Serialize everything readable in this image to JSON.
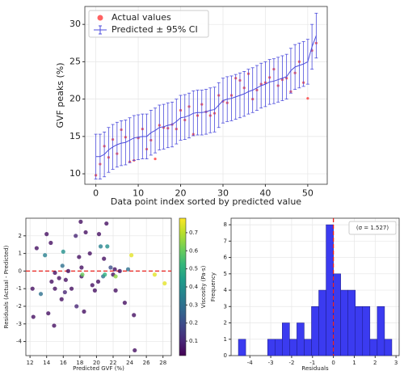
{
  "chart_data": [
    {
      "type": "errorbar_line",
      "xlabel": "Data point index sorted by predicted value",
      "ylabel": "GVF peaks (%)",
      "x": [
        0,
        1,
        2,
        3,
        4,
        5,
        6,
        7,
        8,
        9,
        10,
        11,
        12,
        13,
        14,
        15,
        16,
        17,
        18,
        19,
        20,
        21,
        22,
        23,
        24,
        25,
        26,
        27,
        28,
        29,
        30,
        31,
        32,
        33,
        34,
        35,
        36,
        37,
        38,
        39,
        40,
        41,
        42,
        43,
        44,
        45,
        46,
        47,
        48,
        49,
        50,
        51,
        52
      ],
      "series": [
        {
          "name": "Actual values",
          "color": "#ff3b3b",
          "style": "scatter",
          "values": [
            9.8,
            11.3,
            13.7,
            12.2,
            14.6,
            12.7,
            15.9,
            14.9,
            11.6,
            11.8,
            14.8,
            16.0,
            13.3,
            14.5,
            12.0,
            16.5,
            16.2,
            16.1,
            16.6,
            16.0,
            18.5,
            17.2,
            19.0,
            15.3,
            17.8,
            19.3,
            18.3,
            17.8,
            18.1,
            20.5,
            19.7,
            19.5,
            20.5,
            22.8,
            22.5,
            21.5,
            23.4,
            20.0,
            21.2,
            22.0,
            22.2,
            22.9,
            24.0,
            21.8,
            22.6,
            22.8,
            21.0,
            23.5,
            25.0,
            22.2,
            20.1,
            26.5,
            27.5
          ]
        },
        {
          "name": "Predicted ± 95% CI",
          "color": "#4c4cdc",
          "style": "errorbar",
          "values": [
            12.3,
            12.3,
            12.6,
            13.2,
            13.6,
            13.9,
            14.1,
            14.2,
            14.5,
            14.8,
            14.9,
            15.0,
            15.0,
            15.5,
            15.8,
            16.2,
            16.3,
            16.5,
            16.6,
            17.0,
            17.5,
            17.6,
            17.8,
            18.1,
            18.2,
            18.2,
            18.3,
            18.5,
            18.6,
            19.2,
            19.8,
            20.0,
            20.1,
            20.3,
            20.5,
            20.7,
            21.0,
            21.2,
            21.5,
            21.8,
            22.0,
            22.3,
            22.4,
            22.6,
            22.8,
            23.0,
            23.8,
            24.3,
            24.5,
            24.7,
            25.0,
            27.0,
            28.5
          ],
          "errors": [
            3,
            3,
            3,
            3,
            3,
            3,
            3,
            3,
            3,
            3,
            3,
            3,
            3,
            3,
            3,
            3,
            3,
            3,
            3,
            3,
            3,
            3,
            3,
            3,
            3,
            3,
            3,
            3,
            3,
            3,
            3,
            3,
            3,
            3,
            3,
            3,
            3,
            3,
            3,
            3,
            3,
            3,
            3,
            3,
            3,
            3,
            3,
            3,
            3,
            3,
            3,
            3,
            3
          ]
        }
      ],
      "xlim": [
        -2.6,
        54.6
      ],
      "xticks": [
        0,
        10,
        20,
        30,
        40,
        50
      ],
      "ylim": [
        8.6,
        32.4
      ],
      "yticks": [
        10,
        15,
        20,
        25,
        30
      ],
      "grid": true,
      "legend": "upper left"
    },
    {
      "type": "scatter",
      "xlabel": "Predicted GVF (%)",
      "ylabel": "Residuals (Actual - Predicted)",
      "colorbar_label": "Viscosity (Pa·s)",
      "colormap": "viridis",
      "x": [
        12.3,
        12.4,
        12.8,
        13.3,
        13.8,
        14.0,
        14.2,
        14.5,
        14.6,
        14.9,
        15.0,
        15.0,
        15.5,
        15.8,
        15.9,
        16.0,
        16.2,
        16.3,
        16.6,
        17.0,
        17.5,
        17.6,
        17.9,
        18.1,
        18.2,
        18.2,
        18.3,
        18.5,
        18.7,
        19.2,
        19.5,
        19.8,
        20.2,
        20.3,
        20.5,
        20.8,
        20.9,
        21.0,
        21.2,
        21.3,
        21.7,
        22.0,
        22.2,
        22.3,
        22.3,
        22.8,
        23.4,
        23.8,
        24.2,
        24.5,
        24.6,
        27.0,
        28.2
      ],
      "values": [
        -1.0,
        -2.6,
        1.3,
        -1.3,
        0.9,
        2.1,
        -2.4,
        1.6,
        -0.6,
        -3.1,
        -1.0,
        -0.1,
        -0.4,
        -1.6,
        0.3,
        1.1,
        -1.2,
        -0.5,
        0.0,
        -1.0,
        2.0,
        -2.0,
        0.8,
        2.8,
        -0.3,
        0.2,
        -0.2,
        -2.3,
        2.2,
        1.0,
        -0.8,
        -1.1,
        -0.6,
        2.1,
        1.4,
        -0.3,
        0.7,
        -0.2,
        2.7,
        1.4,
        0.2,
        -0.2,
        0.1,
        -1.1,
        -0.3,
        0.0,
        -1.8,
        0.1,
        0.9,
        -2.5,
        -4.5,
        -0.2,
        -0.7
      ],
      "color_values": [
        0.05,
        0.05,
        0.05,
        0.3,
        0.35,
        0.05,
        0.05,
        0.05,
        0.05,
        0.05,
        0.05,
        0.05,
        0.05,
        0.05,
        0.3,
        0.4,
        0.1,
        0.05,
        0.05,
        0.05,
        0.1,
        0.1,
        0.05,
        0.05,
        0.05,
        0.05,
        0.6,
        0.05,
        0.05,
        0.05,
        0.05,
        0.05,
        0.05,
        0.05,
        0.35,
        0.3,
        0.05,
        0.5,
        0.05,
        0.4,
        0.2,
        0.05,
        0.05,
        0.05,
        0.65,
        0.05,
        0.05,
        0.3,
        0.75,
        0.05,
        0.05,
        0.75,
        0.75
      ],
      "hline": 0,
      "line_color": "#e8201c",
      "xlim": [
        11.5,
        29
      ],
      "xticks": [
        12,
        14,
        16,
        18,
        20,
        22,
        24,
        26,
        28
      ],
      "ylim": [
        -4.8,
        3.0
      ],
      "yticks": [
        -4,
        -3,
        -2,
        -1,
        0,
        1,
        2
      ],
      "clim": [
        0.02,
        0.78
      ],
      "cticks": [
        0.1,
        0.2,
        0.3,
        0.4,
        0.5,
        0.6,
        0.7
      ],
      "grid": true
    },
    {
      "type": "histogram",
      "xlabel": "Residuals",
      "ylabel": "Frequency",
      "annotation": "(σ = 1.527)",
      "color": "#3b3bf0",
      "bins": [
        -4.55,
        -4.2,
        -3.85,
        -3.5,
        -3.15,
        -2.8,
        -2.45,
        -2.1,
        -1.75,
        -1.4,
        -1.05,
        -0.7,
        -0.35,
        0,
        0.35,
        0.7,
        1.05,
        1.4,
        1.75,
        2.1,
        2.45,
        2.8
      ],
      "counts": [
        1,
        0,
        0,
        0,
        1,
        1,
        2,
        1,
        2,
        1,
        3,
        4,
        8,
        5,
        4,
        4,
        3,
        3,
        1,
        3,
        1
      ],
      "vline": 0,
      "line_color": "#e8201c",
      "xlim": [
        -4.9,
        3.15
      ],
      "xticks": [
        -4,
        -3,
        -2,
        -1,
        0,
        1,
        2,
        3
      ],
      "ylim": [
        0,
        8.4
      ],
      "yticks": [
        0,
        1,
        2,
        3,
        4,
        5,
        6,
        7,
        8
      ],
      "grid": true
    }
  ]
}
